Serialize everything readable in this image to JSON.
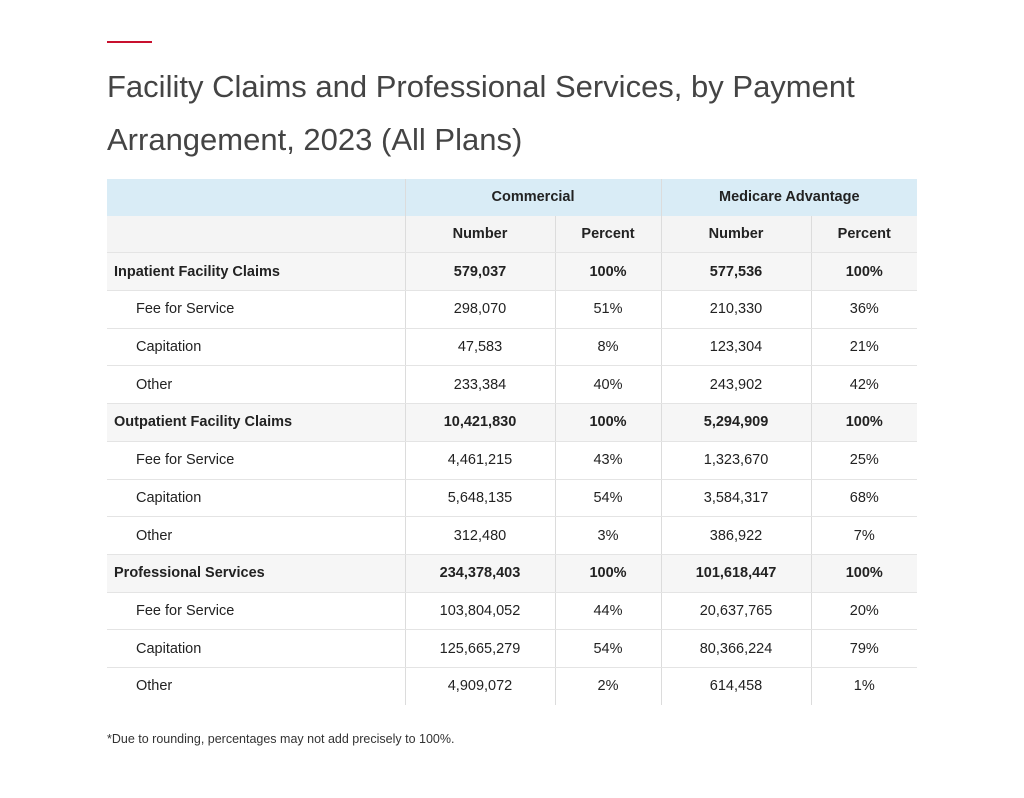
{
  "title": "Facility Claims and Professional Services, by Payment Arrangement, 2023 (All Plans)",
  "table": {
    "groups": [
      "Commercial",
      "Medicare Advantage"
    ],
    "columns": [
      "Number",
      "Percent",
      "Number",
      "Percent"
    ],
    "sections": [
      {
        "label": "Inpatient Facility Claims",
        "cells": [
          "579,037",
          "100%",
          "577,536",
          "100%"
        ],
        "items": [
          {
            "label": "Fee for Service",
            "cells": [
              "298,070",
              "51%",
              "210,330",
              "36%"
            ]
          },
          {
            "label": "Capitation",
            "cells": [
              "47,583",
              "8%",
              "123,304",
              "21%"
            ]
          },
          {
            "label": "Other",
            "cells": [
              "233,384",
              "40%",
              "243,902",
              "42%"
            ]
          }
        ]
      },
      {
        "label": "Outpatient Facility Claims",
        "cells": [
          "10,421,830",
          "100%",
          "5,294,909",
          "100%"
        ],
        "items": [
          {
            "label": "Fee for Service",
            "cells": [
              "4,461,215",
              "43%",
              "1,323,670",
              "25%"
            ]
          },
          {
            "label": "Capitation",
            "cells": [
              "5,648,135",
              "54%",
              "3,584,317",
              "68%"
            ]
          },
          {
            "label": "Other",
            "cells": [
              "312,480",
              "3%",
              "386,922",
              "7%"
            ]
          }
        ]
      },
      {
        "label": "Professional Services",
        "cells": [
          "234,378,403",
          "100%",
          "101,618,447",
          "100%"
        ],
        "items": [
          {
            "label": "Fee for Service",
            "cells": [
              "103,804,052",
              "44%",
              "20,637,765",
              "20%"
            ]
          },
          {
            "label": "Capitation",
            "cells": [
              "125,665,279",
              "54%",
              "80,366,224",
              "79%"
            ]
          },
          {
            "label": "Other",
            "cells": [
              "4,909,072",
              "2%",
              "614,458",
              "1%"
            ]
          }
        ]
      }
    ]
  },
  "footnote": "*Due to rounding, percentages may not add precisely to 100%."
}
